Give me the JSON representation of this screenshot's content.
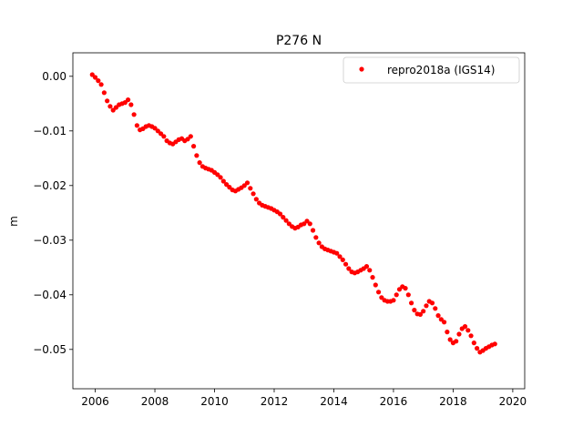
{
  "chart_data": {
    "type": "scatter",
    "title": "P276 N",
    "xlabel": "",
    "ylabel": "m",
    "xlim": [
      2005.25,
      2020.4
    ],
    "ylim": [
      -0.0572,
      0.0043
    ],
    "xticks": [
      {
        "value": 2006,
        "label": "2006"
      },
      {
        "value": 2008,
        "label": "2008"
      },
      {
        "value": 2010,
        "label": "2010"
      },
      {
        "value": 2012,
        "label": "2012"
      },
      {
        "value": 2014,
        "label": "2014"
      },
      {
        "value": 2016,
        "label": "2016"
      },
      {
        "value": 2018,
        "label": "2018"
      },
      {
        "value": 2020,
        "label": "2020"
      }
    ],
    "yticks": [
      {
        "value": 0.0,
        "label": "0.00"
      },
      {
        "value": -0.01,
        "label": "−0.01"
      },
      {
        "value": -0.02,
        "label": "−0.02"
      },
      {
        "value": -0.03,
        "label": "−0.03"
      },
      {
        "value": -0.04,
        "label": "−0.04"
      },
      {
        "value": -0.05,
        "label": "−0.05"
      }
    ],
    "grid": false,
    "legend_position": "top-right",
    "marker_color": "#ff0000",
    "series": [
      {
        "name": "repro2018a (IGS14)",
        "color": "#ff0000",
        "points": [
          [
            2005.9,
            0.0003
          ],
          [
            2006.0,
            -0.0002
          ],
          [
            2006.1,
            -0.0008
          ],
          [
            2006.2,
            -0.0015
          ],
          [
            2006.3,
            -0.003
          ],
          [
            2006.4,
            -0.0045
          ],
          [
            2006.5,
            -0.0055
          ],
          [
            2006.6,
            -0.0062
          ],
          [
            2006.7,
            -0.0057
          ],
          [
            2006.8,
            -0.0052
          ],
          [
            2006.9,
            -0.005
          ],
          [
            2007.0,
            -0.0048
          ],
          [
            2007.1,
            -0.0043
          ],
          [
            2007.2,
            -0.0052
          ],
          [
            2007.3,
            -0.007
          ],
          [
            2007.4,
            -0.009
          ],
          [
            2007.5,
            -0.0098
          ],
          [
            2007.6,
            -0.0096
          ],
          [
            2007.7,
            -0.0092
          ],
          [
            2007.8,
            -0.009
          ],
          [
            2007.9,
            -0.0092
          ],
          [
            2008.0,
            -0.0095
          ],
          [
            2008.1,
            -0.01
          ],
          [
            2008.2,
            -0.0105
          ],
          [
            2008.3,
            -0.011
          ],
          [
            2008.4,
            -0.0118
          ],
          [
            2008.5,
            -0.0122
          ],
          [
            2008.6,
            -0.0124
          ],
          [
            2008.7,
            -0.012
          ],
          [
            2008.8,
            -0.0116
          ],
          [
            2008.9,
            -0.0114
          ],
          [
            2009.0,
            -0.0118
          ],
          [
            2009.1,
            -0.0115
          ],
          [
            2009.2,
            -0.011
          ],
          [
            2009.3,
            -0.0128
          ],
          [
            2009.4,
            -0.0145
          ],
          [
            2009.5,
            -0.0158
          ],
          [
            2009.6,
            -0.0165
          ],
          [
            2009.7,
            -0.0168
          ],
          [
            2009.8,
            -0.017
          ],
          [
            2009.9,
            -0.0172
          ],
          [
            2010.0,
            -0.0176
          ],
          [
            2010.1,
            -0.018
          ],
          [
            2010.2,
            -0.0185
          ],
          [
            2010.3,
            -0.0192
          ],
          [
            2010.4,
            -0.0198
          ],
          [
            2010.5,
            -0.0203
          ],
          [
            2010.6,
            -0.0208
          ],
          [
            2010.7,
            -0.021
          ],
          [
            2010.8,
            -0.0207
          ],
          [
            2010.9,
            -0.0204
          ],
          [
            2011.0,
            -0.02
          ],
          [
            2011.1,
            -0.0195
          ],
          [
            2011.2,
            -0.0205
          ],
          [
            2011.3,
            -0.0215
          ],
          [
            2011.4,
            -0.0225
          ],
          [
            2011.5,
            -0.0232
          ],
          [
            2011.6,
            -0.0236
          ],
          [
            2011.7,
            -0.0238
          ],
          [
            2011.8,
            -0.024
          ],
          [
            2011.9,
            -0.0242
          ],
          [
            2012.0,
            -0.0245
          ],
          [
            2012.1,
            -0.0248
          ],
          [
            2012.2,
            -0.0252
          ],
          [
            2012.3,
            -0.0258
          ],
          [
            2012.4,
            -0.0264
          ],
          [
            2012.5,
            -0.027
          ],
          [
            2012.6,
            -0.0275
          ],
          [
            2012.7,
            -0.0278
          ],
          [
            2012.8,
            -0.0276
          ],
          [
            2012.9,
            -0.0272
          ],
          [
            2013.0,
            -0.027
          ],
          [
            2013.1,
            -0.0265
          ],
          [
            2013.2,
            -0.027
          ],
          [
            2013.3,
            -0.0282
          ],
          [
            2013.4,
            -0.0295
          ],
          [
            2013.5,
            -0.0305
          ],
          [
            2013.6,
            -0.0312
          ],
          [
            2013.7,
            -0.0316
          ],
          [
            2013.8,
            -0.0318
          ],
          [
            2013.9,
            -0.032
          ],
          [
            2014.0,
            -0.0322
          ],
          [
            2014.1,
            -0.0324
          ],
          [
            2014.2,
            -0.033
          ],
          [
            2014.3,
            -0.0336
          ],
          [
            2014.4,
            -0.0344
          ],
          [
            2014.5,
            -0.0352
          ],
          [
            2014.6,
            -0.0358
          ],
          [
            2014.7,
            -0.036
          ],
          [
            2014.8,
            -0.0358
          ],
          [
            2014.9,
            -0.0355
          ],
          [
            2015.0,
            -0.0352
          ],
          [
            2015.1,
            -0.0348
          ],
          [
            2015.2,
            -0.0355
          ],
          [
            2015.3,
            -0.0368
          ],
          [
            2015.4,
            -0.0382
          ],
          [
            2015.5,
            -0.0395
          ],
          [
            2015.6,
            -0.0405
          ],
          [
            2015.7,
            -0.041
          ],
          [
            2015.8,
            -0.0412
          ],
          [
            2015.9,
            -0.0412
          ],
          [
            2016.0,
            -0.041
          ],
          [
            2016.1,
            -0.04
          ],
          [
            2016.2,
            -0.039
          ],
          [
            2016.3,
            -0.0385
          ],
          [
            2016.4,
            -0.0388
          ],
          [
            2016.5,
            -0.04
          ],
          [
            2016.6,
            -0.0415
          ],
          [
            2016.7,
            -0.0428
          ],
          [
            2016.8,
            -0.0435
          ],
          [
            2016.9,
            -0.0436
          ],
          [
            2017.0,
            -0.043
          ],
          [
            2017.1,
            -0.042
          ],
          [
            2017.2,
            -0.0412
          ],
          [
            2017.3,
            -0.0415
          ],
          [
            2017.4,
            -0.0425
          ],
          [
            2017.5,
            -0.0438
          ],
          [
            2017.6,
            -0.0445
          ],
          [
            2017.7,
            -0.045
          ],
          [
            2017.8,
            -0.0468
          ],
          [
            2017.9,
            -0.0482
          ],
          [
            2018.0,
            -0.0488
          ],
          [
            2018.1,
            -0.0485
          ],
          [
            2018.2,
            -0.0472
          ],
          [
            2018.3,
            -0.0462
          ],
          [
            2018.4,
            -0.0458
          ],
          [
            2018.5,
            -0.0465
          ],
          [
            2018.6,
            -0.0475
          ],
          [
            2018.7,
            -0.0488
          ],
          [
            2018.8,
            -0.0498
          ],
          [
            2018.9,
            -0.0505
          ],
          [
            2019.0,
            -0.0502
          ],
          [
            2019.1,
            -0.0498
          ],
          [
            2019.2,
            -0.0495
          ],
          [
            2019.3,
            -0.0492
          ],
          [
            2019.4,
            -0.049
          ]
        ]
      }
    ]
  }
}
